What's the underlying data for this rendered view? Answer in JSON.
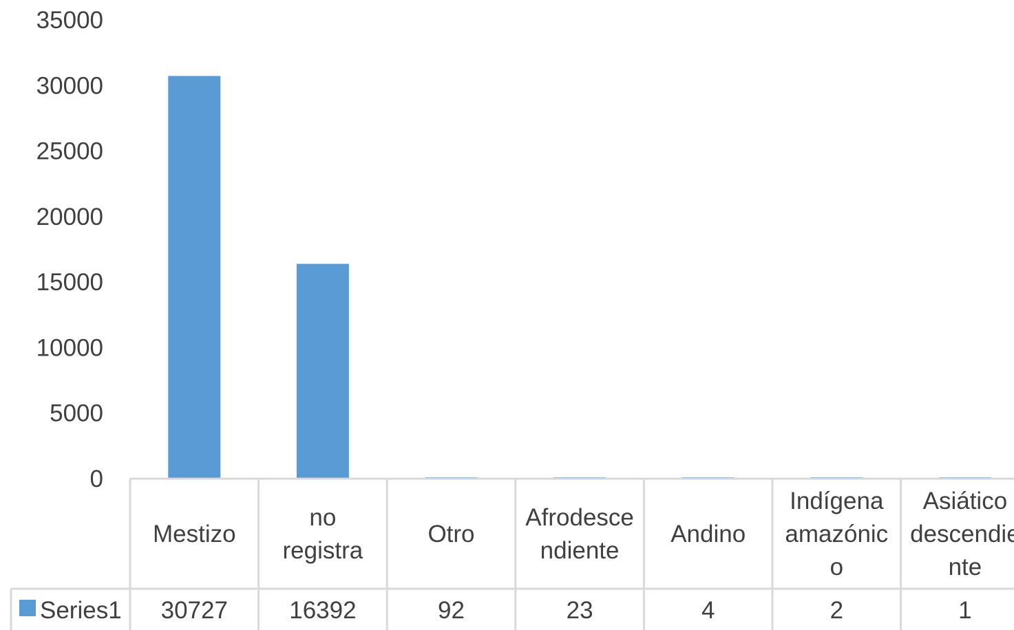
{
  "chart_data": {
    "type": "bar",
    "categories": [
      "Mestizo",
      "no registra",
      "Otro",
      "Afrodescendiente",
      "Andino",
      "Indígena amazónico",
      "Asiático descendiente"
    ],
    "category_display_lines": [
      [
        "Mestizo"
      ],
      [
        "no",
        "registra"
      ],
      [
        "Otro"
      ],
      [
        "Afrodesce",
        "ndiente"
      ],
      [
        "Andino"
      ],
      [
        "Indígena",
        "amazónic",
        "o"
      ],
      [
        "Asiático",
        "descendie",
        "nte"
      ]
    ],
    "series": [
      {
        "name": "Series1",
        "values": [
          30727,
          16392,
          92,
          23,
          4,
          2,
          1
        ]
      }
    ],
    "value_labels": [
      "30727",
      "16392",
      "92",
      "23",
      "4",
      "2",
      "1"
    ],
    "yticks": [
      "0",
      "5000",
      "10000",
      "15000",
      "20000",
      "25000",
      "30000",
      "35000"
    ],
    "ylim": [
      0,
      35000
    ],
    "bar_color": "#5b9bd5",
    "legend": "data-table",
    "grid": false
  }
}
